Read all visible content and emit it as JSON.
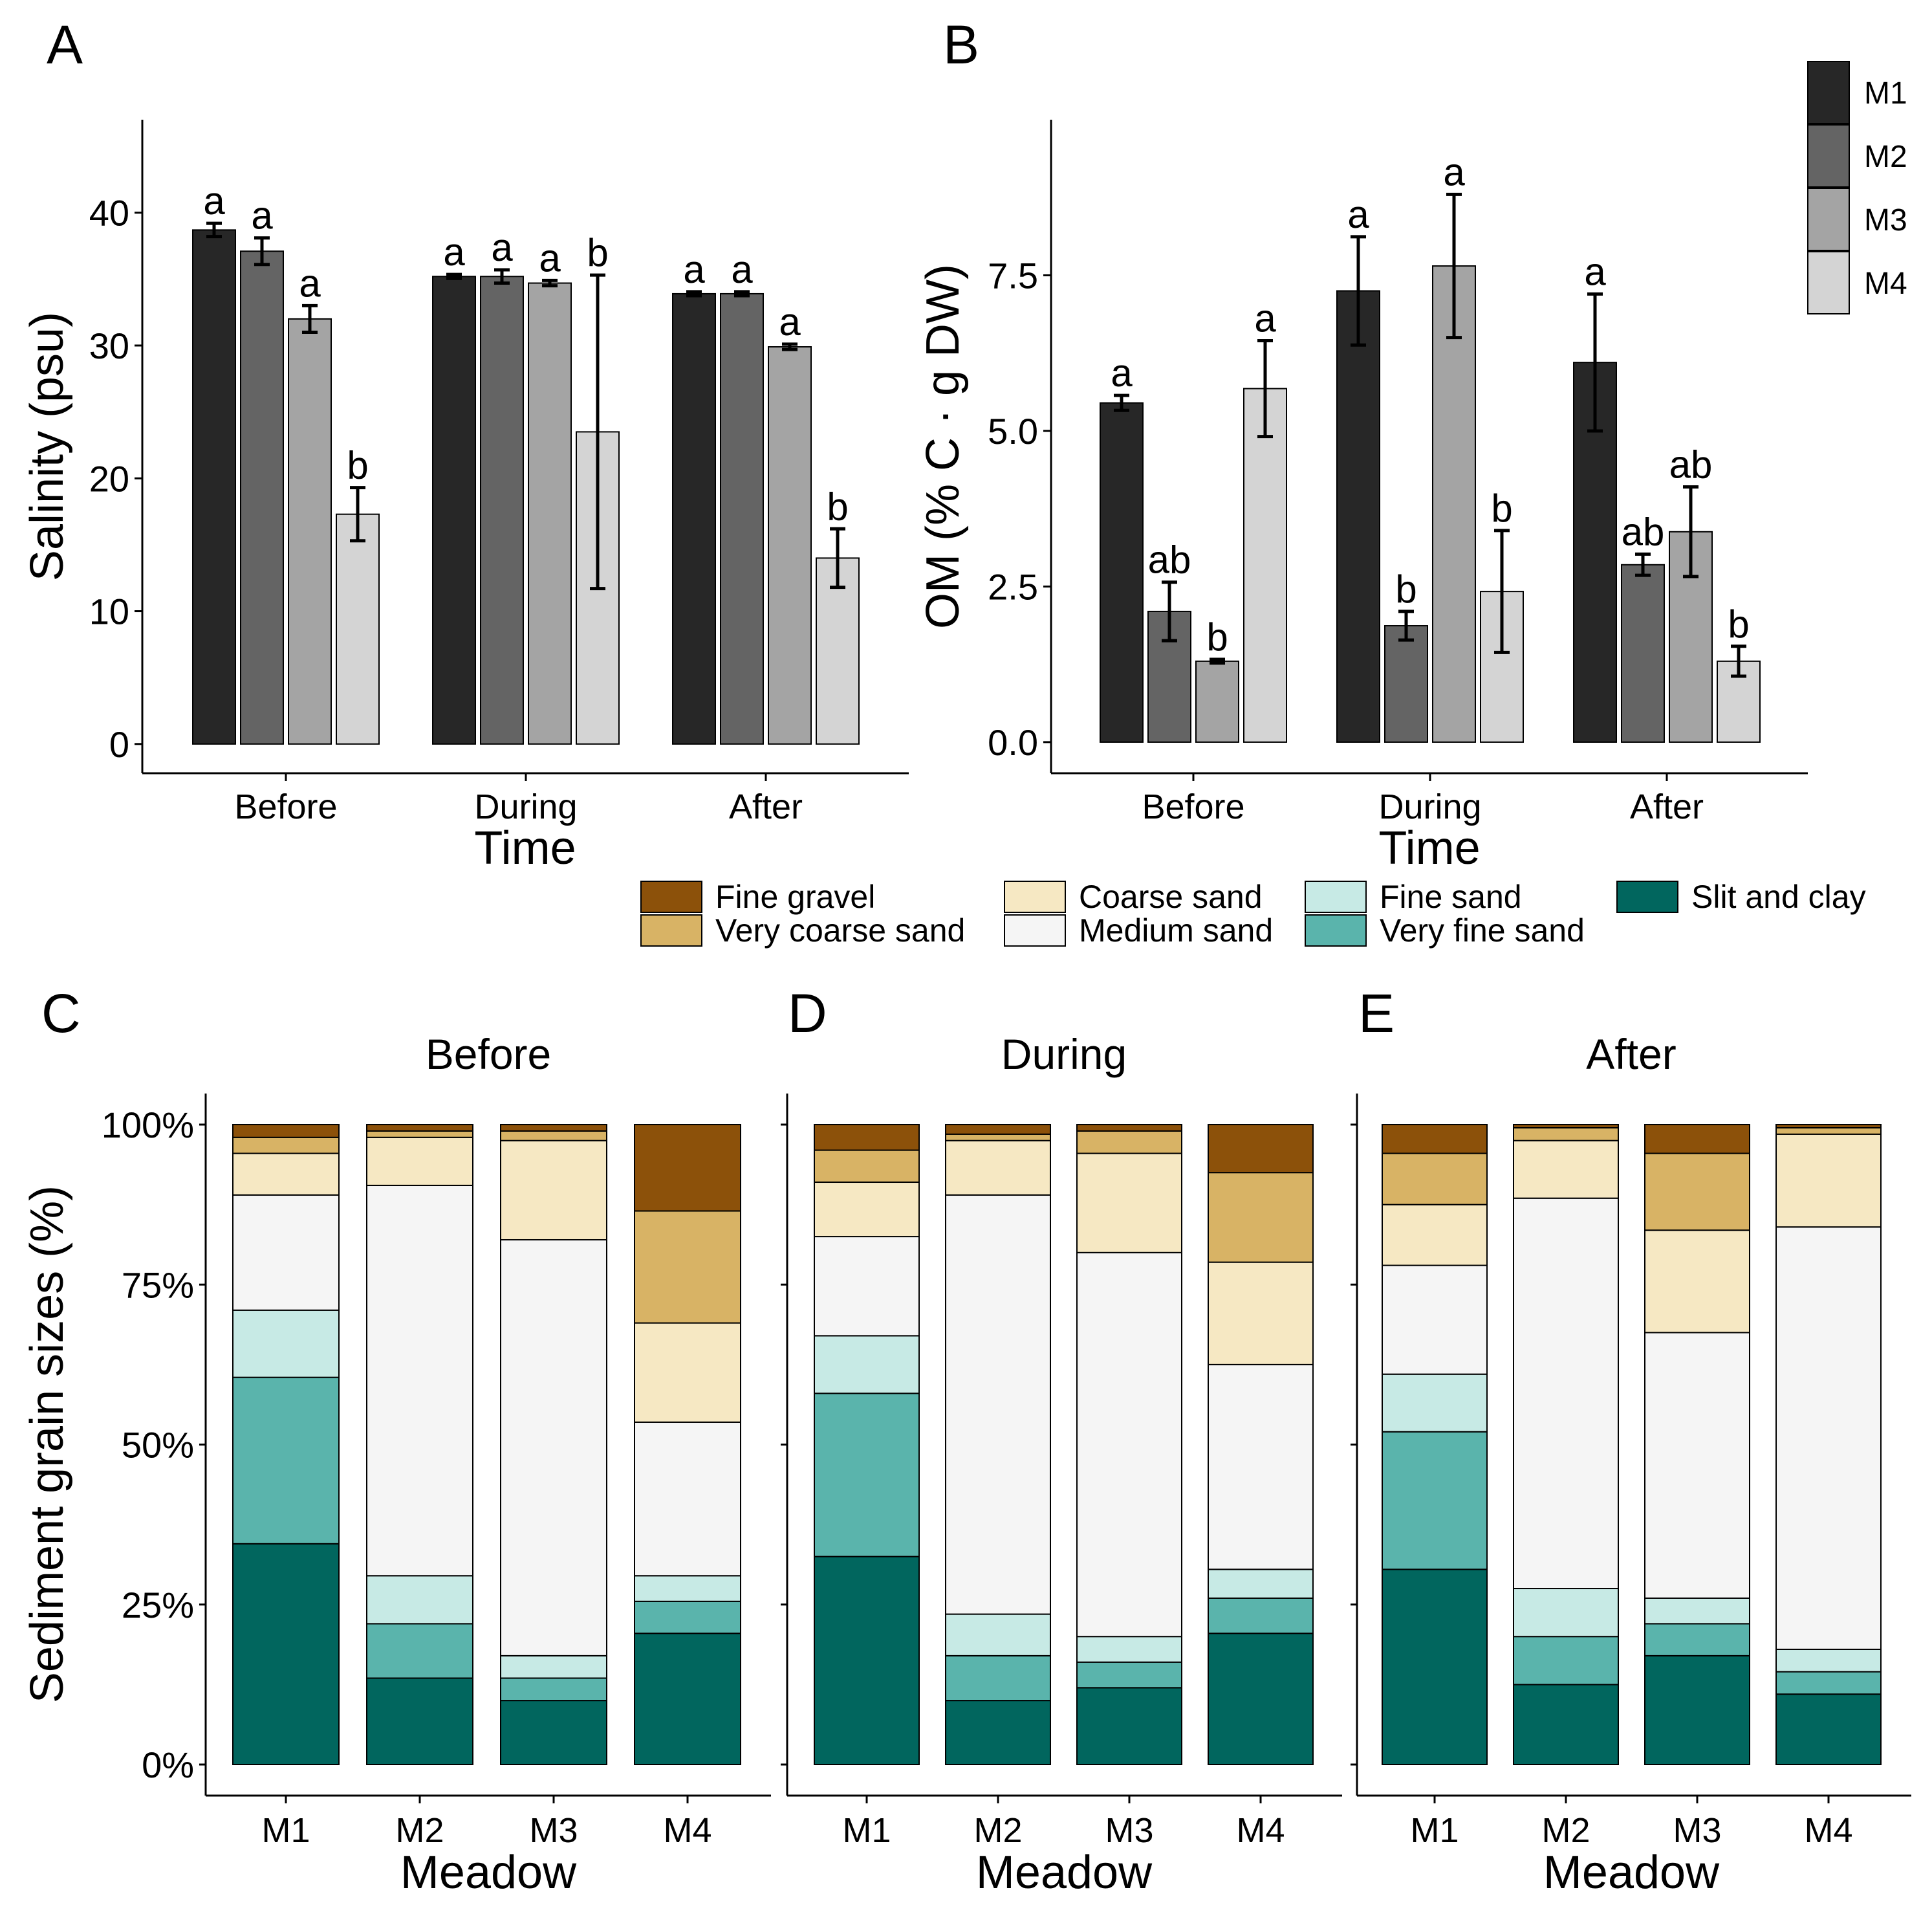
{
  "chart_data": [
    {
      "panel": "A",
      "type": "bar",
      "categories": [
        "Before",
        "During",
        "After"
      ],
      "series": [
        {
          "name": "M1",
          "values": [
            38.7,
            35.2,
            33.9
          ],
          "errors": [
            0.5,
            0.15,
            0.15
          ],
          "letters": [
            "a",
            "a",
            "a"
          ]
        },
        {
          "name": "M2",
          "values": [
            37.1,
            35.2,
            33.9
          ],
          "errors": [
            1.0,
            0.5,
            0.15
          ],
          "letters": [
            "a",
            "a",
            "a"
          ]
        },
        {
          "name": "M3",
          "values": [
            32.0,
            34.7,
            29.9
          ],
          "errors": [
            1.0,
            0.2,
            0.2
          ],
          "letters": [
            "a",
            "a",
            "a"
          ]
        },
        {
          "name": "M4",
          "values": [
            17.3,
            23.5,
            14.0
          ],
          "errors": [
            2.0,
            11.8,
            2.2
          ],
          "letters": [
            "b",
            "b",
            "b"
          ]
        }
      ],
      "yticks": [
        0,
        10,
        20,
        30,
        40
      ],
      "ylim": [
        -2.2,
        47
      ],
      "xlabel": "Time",
      "ylabel": "Salinity (psu)"
    },
    {
      "panel": "B",
      "type": "bar",
      "categories": [
        "Before",
        "During",
        "After"
      ],
      "series": [
        {
          "name": "M1",
          "values": [
            5.45,
            7.25,
            6.1
          ],
          "errors": [
            0.12,
            0.87,
            1.1
          ],
          "letters": [
            "a",
            "a",
            "a"
          ]
        },
        {
          "name": "M2",
          "values": [
            2.1,
            1.87,
            2.85
          ],
          "errors": [
            0.47,
            0.23,
            0.17
          ],
          "letters": [
            "ab",
            "b",
            "ab"
          ]
        },
        {
          "name": "M3",
          "values": [
            1.3,
            7.65,
            3.38
          ],
          "errors": [
            0.03,
            1.15,
            0.72
          ],
          "letters": [
            "b",
            "a",
            "ab"
          ]
        },
        {
          "name": "M4",
          "values": [
            5.68,
            2.42,
            1.3
          ],
          "errors": [
            0.77,
            0.98,
            0.24
          ],
          "letters": [
            "a",
            "b",
            "b"
          ]
        }
      ],
      "yticks": [
        "0.0",
        "2.5",
        "5.0",
        "7.5"
      ],
      "ylim": [
        -0.5,
        10
      ],
      "xlabel": "Time",
      "ylabel": "OM (% C · g DW)"
    },
    {
      "panel": "C",
      "type": "stacked-bar",
      "title": "Before",
      "categories": [
        "M1",
        "M2",
        "M3",
        "M4"
      ],
      "series": [
        {
          "name": "Slit and clay",
          "values": [
            34.5,
            13.5,
            10,
            20.5
          ]
        },
        {
          "name": "Very fine sand",
          "values": [
            26,
            8.5,
            3.5,
            5
          ]
        },
        {
          "name": "Fine sand",
          "values": [
            10.5,
            7.5,
            3.5,
            4
          ]
        },
        {
          "name": "Medium sand",
          "values": [
            18,
            61,
            65,
            24
          ]
        },
        {
          "name": "Coarse sand",
          "values": [
            6.5,
            7.5,
            15.5,
            15.5
          ]
        },
        {
          "name": "Very coarse sand",
          "values": [
            2.5,
            1,
            1.5,
            17.5
          ]
        },
        {
          "name": "Fine gravel",
          "values": [
            2,
            1,
            1,
            13.5
          ]
        }
      ]
    },
    {
      "panel": "D",
      "type": "stacked-bar",
      "title": "During",
      "categories": [
        "M1",
        "M2",
        "M3",
        "M4"
      ],
      "series": [
        {
          "name": "Slit and clay",
          "values": [
            32.5,
            10,
            12,
            20.5
          ]
        },
        {
          "name": "Very fine sand",
          "values": [
            25.5,
            7,
            4,
            5.5
          ]
        },
        {
          "name": "Fine sand",
          "values": [
            9,
            6.5,
            4,
            4.5
          ]
        },
        {
          "name": "Medium sand",
          "values": [
            15.5,
            65.5,
            60,
            32
          ]
        },
        {
          "name": "Coarse sand",
          "values": [
            8.5,
            8.5,
            15.5,
            16
          ]
        },
        {
          "name": "Very coarse sand",
          "values": [
            5,
            1,
            3.5,
            14
          ]
        },
        {
          "name": "Fine gravel",
          "values": [
            4,
            1.5,
            1,
            7.5
          ]
        }
      ]
    },
    {
      "panel": "E",
      "type": "stacked-bar",
      "title": "After",
      "categories": [
        "M1",
        "M2",
        "M3",
        "M4"
      ],
      "series": [
        {
          "name": "Slit and clay",
          "values": [
            30.5,
            12.5,
            17,
            11
          ]
        },
        {
          "name": "Very fine sand",
          "values": [
            21.5,
            7.5,
            5,
            3.5
          ]
        },
        {
          "name": "Fine sand",
          "values": [
            9,
            7.5,
            4,
            3.5
          ]
        },
        {
          "name": "Medium sand",
          "values": [
            17,
            61,
            41.5,
            66
          ]
        },
        {
          "name": "Coarse sand",
          "values": [
            9.5,
            9,
            16,
            14.5
          ]
        },
        {
          "name": "Very coarse sand",
          "values": [
            8,
            2,
            12,
            1
          ]
        },
        {
          "name": "Fine gravel",
          "values": [
            4.5,
            0.5,
            4.5,
            0.5
          ]
        }
      ]
    }
  ],
  "grain_axis": {
    "yticks": [
      "0%",
      "25%",
      "50%",
      "75%",
      "100%"
    ],
    "ylabel": "Sediment grain sizes (%)",
    "xlabel": "Meadow"
  },
  "legend_meadow": {
    "items": [
      {
        "name": "M1",
        "color": "#272727"
      },
      {
        "name": "M2",
        "color": "#646464"
      },
      {
        "name": "M3",
        "color": "#a4a4a4"
      },
      {
        "name": "M4",
        "color": "#d4d4d4"
      }
    ]
  },
  "legend_grain": {
    "items": [
      {
        "name": "Fine gravel",
        "color": "#8c510a"
      },
      {
        "name": "Very coarse sand",
        "color": "#d8b365"
      },
      {
        "name": "Coarse sand",
        "color": "#f6e8c3"
      },
      {
        "name": "Medium sand",
        "color": "#f5f5f5"
      },
      {
        "name": "Fine sand",
        "color": "#c7eae5"
      },
      {
        "name": "Very fine sand",
        "color": "#5ab4ac"
      },
      {
        "name": "Slit and clay",
        "color": "#01665e"
      }
    ]
  }
}
